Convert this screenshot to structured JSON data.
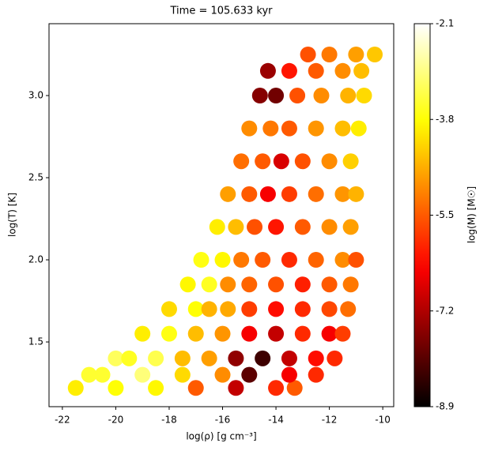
{
  "chart_data": {
    "type": "scatter",
    "title": "Time = 105.633 kyr",
    "x_label": "log(ρ) [g cm⁻³]",
    "y_label": "log(T) [K]",
    "colorbar_label": "log(M) [M☉]",
    "colormap": "hot",
    "x": [
      -21.5,
      -20,
      -18.5,
      -17,
      -15.5,
      -14,
      -13.3,
      -21,
      -20.5,
      -19,
      -17.5,
      -16,
      -15,
      -13.5,
      -12.5,
      -20,
      -19.5,
      -18.5,
      -17.5,
      -16.5,
      -15.5,
      -14.5,
      -13.5,
      -12.5,
      -11.8,
      -19,
      -18,
      -17,
      -16,
      -15,
      -14,
      -13,
      -12,
      -11.5,
      -18,
      -17,
      -16.5,
      -15.8,
      -15,
      -14,
      -13,
      -12,
      -11.3,
      -17.3,
      -16.5,
      -15.8,
      -15,
      -14,
      -13,
      -12,
      -11.2,
      -16.8,
      -16,
      -15.3,
      -14.5,
      -13.5,
      -12.5,
      -11.5,
      -11,
      -16.2,
      -15.5,
      -14.8,
      -14,
      -13,
      -12,
      -11.2,
      -15.8,
      -15,
      -14.3,
      -13.5,
      -12.5,
      -11.5,
      -11,
      -15.3,
      -14.5,
      -13.8,
      -13,
      -12,
      -11.2,
      -15,
      -14.2,
      -13.5,
      -12.5,
      -11.5,
      -10.9,
      -14.6,
      -14,
      -13.2,
      -12.3,
      -11.3,
      -10.7,
      -14.3,
      -13.5,
      -12.5,
      -11.5,
      -10.8,
      -12.8,
      -12,
      -11,
      -10.3
    ],
    "values": [
      1.22,
      1.22,
      1.22,
      1.22,
      1.22,
      1.22,
      1.22,
      1.3,
      1.3,
      1.3,
      1.3,
      1.3,
      1.3,
      1.3,
      1.3,
      1.4,
      1.4,
      1.4,
      1.4,
      1.4,
      1.4,
      1.4,
      1.4,
      1.4,
      1.4,
      1.55,
      1.55,
      1.55,
      1.55,
      1.55,
      1.55,
      1.55,
      1.55,
      1.55,
      1.7,
      1.7,
      1.7,
      1.7,
      1.7,
      1.7,
      1.7,
      1.7,
      1.7,
      1.85,
      1.85,
      1.85,
      1.85,
      1.85,
      1.85,
      1.85,
      1.85,
      2.0,
      2.0,
      2.0,
      2.0,
      2.0,
      2.0,
      2.0,
      2.0,
      2.2,
      2.2,
      2.2,
      2.2,
      2.2,
      2.2,
      2.2,
      2.4,
      2.4,
      2.4,
      2.4,
      2.4,
      2.4,
      2.4,
      2.6,
      2.6,
      2.6,
      2.6,
      2.6,
      2.6,
      2.8,
      2.8,
      2.8,
      2.8,
      2.8,
      2.8,
      3.0,
      3.0,
      3.0,
      3.0,
      3.0,
      3.0,
      3.15,
      3.15,
      3.15,
      3.15,
      3.15,
      3.25,
      3.25,
      3.25,
      3.25
    ],
    "color_values": [
      -4.0,
      -3.8,
      -3.9,
      -5.5,
      -7.0,
      -6.0,
      -5.5,
      -3.5,
      -3.5,
      -3.0,
      -4.2,
      -5.0,
      -8.0,
      -6.5,
      -6.0,
      -3.2,
      -3.6,
      -3.3,
      -4.5,
      -4.8,
      -7.5,
      -8.3,
      -7.0,
      -6.3,
      -6.0,
      -4.0,
      -3.7,
      -4.5,
      -4.9,
      -6.5,
      -7.0,
      -6.0,
      -6.5,
      -5.8,
      -4.2,
      -3.8,
      -4.6,
      -4.7,
      -5.8,
      -6.3,
      -6.0,
      -5.7,
      -5.3,
      -3.9,
      -3.6,
      -5.0,
      -5.4,
      -5.6,
      -6.1,
      -5.5,
      -5.2,
      -3.7,
      -3.9,
      -5.2,
      -5.5,
      -6.0,
      -5.4,
      -5.0,
      -5.6,
      -4.0,
      -4.5,
      -5.6,
      -6.2,
      -5.5,
      -5.0,
      -4.8,
      -4.8,
      -5.5,
      -6.5,
      -5.8,
      -5.3,
      -4.9,
      -4.6,
      -5.3,
      -5.5,
      -6.8,
      -5.6,
      -5.0,
      -4.3,
      -5.0,
      -5.2,
      -5.5,
      -4.9,
      -4.5,
      -4.0,
      -7.6,
      -7.8,
      -5.6,
      -5.0,
      -4.6,
      -4.2,
      -7.4,
      -6.2,
      -5.5,
      -5.0,
      -4.5,
      -5.6,
      -5.2,
      -4.8,
      -4.4
    ],
    "xlim": [
      -22.5,
      -9.59
    ],
    "xticks": [
      -22,
      -20,
      -18,
      -16,
      -14,
      -12,
      -10
    ],
    "ylim": [
      1.106,
      3.4375
    ],
    "yticks": [
      1.5,
      {
        "value": 2,
        "label": "2.0"
      },
      2.5,
      {
        "value": 3,
        "label": "3.0"
      }
    ],
    "clim": [
      -8.9,
      -2.1
    ],
    "cticks": [
      -8.9,
      -7.2,
      -5.5,
      -3.8,
      -2.1
    ]
  }
}
